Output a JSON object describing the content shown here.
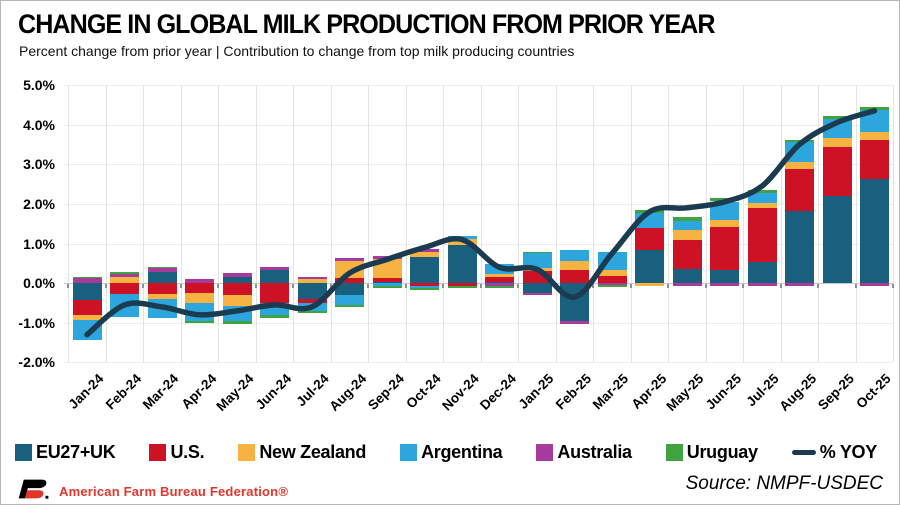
{
  "header": {
    "title": "CHANGE IN GLOBAL MILK PRODUCTION FROM PRIOR YEAR",
    "subtitle": "Percent change from prior year | Contribution to change from top milk producing countries"
  },
  "footer": {
    "brand": "American Farm Bureau Federation®",
    "source": "Source: NMPF-USDEC"
  },
  "chart_data": {
    "type": "bar",
    "subtype": "stacked-bar-with-line",
    "title": "CHANGE IN GLOBAL MILK PRODUCTION FROM PRIOR YEAR",
    "xlabel": "",
    "ylabel": "Percent change from prior year",
    "unit": "%",
    "ylim": [
      -2.0,
      5.0
    ],
    "ytick_step": 1.0,
    "ytick_labels": [
      "5.0%",
      "4.0%",
      "3.0%",
      "2.0%",
      "1.0%",
      "0.0%",
      "-1.0%",
      "-2.0%"
    ],
    "grid": true,
    "legend_position": "bottom",
    "categories": [
      "Jan-24",
      "Feb-24",
      "Mar-24",
      "Apr-24",
      "May-24",
      "Jun-24",
      "Jul-24",
      "Aug-24",
      "Sep-24",
      "Oct-24",
      "Nov-24",
      "Dec-24",
      "Jan-25",
      "Feb-25",
      "Mar-25",
      "Apr-25",
      "May-25",
      "Jun-25",
      "Jul-25",
      "Aug-25",
      "Sep-25",
      "Oct-25"
    ],
    "series": [
      {
        "name": "EU27+UK",
        "color": "#19607e",
        "values": [
          -0.42,
          0.0,
          0.27,
          0.0,
          0.15,
          0.33,
          -0.4,
          -0.3,
          0.03,
          0.66,
          0.95,
          0.04,
          -0.25,
          -0.95,
          0.0,
          0.83,
          0.36,
          0.32,
          0.53,
          1.82,
          2.2,
          2.62
        ]
      },
      {
        "name": "U.S.",
        "color": "#cc1224",
        "values": [
          -0.38,
          -0.28,
          -0.27,
          -0.25,
          -0.3,
          -0.5,
          -0.11,
          0.14,
          0.1,
          -0.08,
          -0.08,
          0.11,
          0.31,
          0.32,
          0.19,
          0.55,
          0.72,
          1.1,
          1.36,
          1.07,
          1.23,
          1.0
        ]
      },
      {
        "name": "New Zealand",
        "color": "#f7b342",
        "values": [
          -0.14,
          0.15,
          -0.13,
          -0.25,
          -0.28,
          0.0,
          0.1,
          0.42,
          0.47,
          0.13,
          0.17,
          0.08,
          0.08,
          0.24,
          0.13,
          -0.06,
          0.25,
          0.17,
          0.13,
          0.17,
          0.23,
          0.2
        ]
      },
      {
        "name": "Argentina",
        "color": "#2ca6dd",
        "values": [
          -0.5,
          -0.58,
          -0.47,
          -0.45,
          -0.38,
          -0.31,
          -0.19,
          -0.25,
          -0.08,
          -0.05,
          0.08,
          0.26,
          0.38,
          0.27,
          0.47,
          0.38,
          0.25,
          0.47,
          0.25,
          0.49,
          0.49,
          0.56
        ]
      },
      {
        "name": "Australia",
        "color": "#a63a9d",
        "values": [
          0.12,
          0.09,
          0.1,
          0.1,
          0.1,
          0.08,
          0.06,
          0.08,
          0.08,
          0.08,
          0.0,
          -0.08,
          -0.05,
          -0.07,
          -0.05,
          0.0,
          -0.08,
          -0.08,
          -0.08,
          -0.08,
          0.0,
          -0.08
        ]
      },
      {
        "name": "Uruguay",
        "color": "#3fa440",
        "values": [
          0.03,
          0.04,
          0.03,
          -0.06,
          -0.07,
          -0.06,
          -0.06,
          -0.06,
          -0.04,
          -0.04,
          -0.03,
          -0.04,
          0.02,
          0.0,
          -0.04,
          0.08,
          0.08,
          0.08,
          0.08,
          0.06,
          0.06,
          0.06
        ]
      }
    ],
    "line": {
      "name": "% YOY",
      "color": "#1b3c50",
      "values": [
        -1.3,
        -0.55,
        -0.6,
        -0.8,
        -0.7,
        -0.55,
        -0.6,
        0.25,
        0.6,
        0.9,
        1.1,
        0.4,
        0.35,
        -0.35,
        0.75,
        1.8,
        1.9,
        2.05,
        2.45,
        3.5,
        4.05,
        4.35
      ]
    }
  }
}
